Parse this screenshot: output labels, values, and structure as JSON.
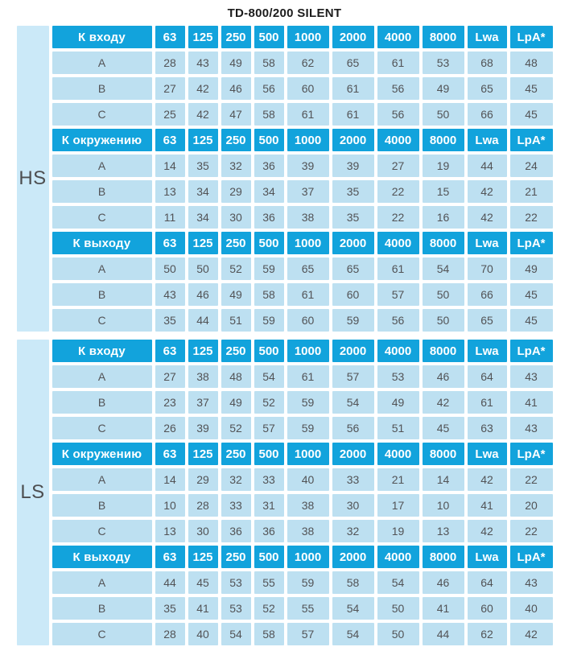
{
  "title": "TD-800/200 SILENT",
  "colors": {
    "header_blue": "#12a3dc",
    "cell_blue": "#bde0f1",
    "gutter_blue": "#cbe9f8",
    "text_dark": "#525356",
    "header_text": "#ffffff"
  },
  "chart_data": {
    "type": "table",
    "title": "TD-800/200 SILENT",
    "frequency_columns": [
      "63",
      "125",
      "250",
      "500",
      "1000",
      "2000",
      "4000",
      "8000",
      "Lwa",
      "LpA*"
    ],
    "groups": [
      {
        "label": "HS",
        "sections": [
          {
            "header": "К входу",
            "rows": [
              {
                "label": "A",
                "values": [
                  28,
                  43,
                  49,
                  58,
                  62,
                  65,
                  61,
                  53,
                  68,
                  48
                ]
              },
              {
                "label": "B",
                "values": [
                  27,
                  42,
                  46,
                  56,
                  60,
                  61,
                  56,
                  49,
                  65,
                  45
                ]
              },
              {
                "label": "C",
                "values": [
                  25,
                  42,
                  47,
                  58,
                  61,
                  61,
                  56,
                  50,
                  66,
                  45
                ]
              }
            ]
          },
          {
            "header": "К окружению",
            "rows": [
              {
                "label": "A",
                "values": [
                  14,
                  35,
                  32,
                  36,
                  39,
                  39,
                  27,
                  19,
                  44,
                  24
                ]
              },
              {
                "label": "B",
                "values": [
                  13,
                  34,
                  29,
                  34,
                  37,
                  35,
                  22,
                  15,
                  42,
                  21
                ]
              },
              {
                "label": "C",
                "values": [
                  11,
                  34,
                  30,
                  36,
                  38,
                  35,
                  22,
                  16,
                  42,
                  22
                ]
              }
            ]
          },
          {
            "header": "К выходу",
            "rows": [
              {
                "label": "A",
                "values": [
                  50,
                  50,
                  52,
                  59,
                  65,
                  65,
                  61,
                  54,
                  70,
                  49
                ]
              },
              {
                "label": "B",
                "values": [
                  43,
                  46,
                  49,
                  58,
                  61,
                  60,
                  57,
                  50,
                  66,
                  45
                ]
              },
              {
                "label": "C",
                "values": [
                  35,
                  44,
                  51,
                  59,
                  60,
                  59,
                  56,
                  50,
                  65,
                  45
                ]
              }
            ]
          }
        ]
      },
      {
        "label": "LS",
        "sections": [
          {
            "header": "К входу",
            "rows": [
              {
                "label": "A",
                "values": [
                  27,
                  38,
                  48,
                  54,
                  61,
                  57,
                  53,
                  46,
                  64,
                  43
                ]
              },
              {
                "label": "B",
                "values": [
                  23,
                  37,
                  49,
                  52,
                  59,
                  54,
                  49,
                  42,
                  61,
                  41
                ]
              },
              {
                "label": "C",
                "values": [
                  26,
                  39,
                  52,
                  57,
                  59,
                  56,
                  51,
                  45,
                  63,
                  43
                ]
              }
            ]
          },
          {
            "header": "К окружению",
            "rows": [
              {
                "label": "A",
                "values": [
                  14,
                  29,
                  32,
                  33,
                  40,
                  33,
                  21,
                  14,
                  42,
                  22
                ]
              },
              {
                "label": "B",
                "values": [
                  10,
                  28,
                  33,
                  31,
                  38,
                  30,
                  17,
                  10,
                  41,
                  20
                ]
              },
              {
                "label": "C",
                "values": [
                  13,
                  30,
                  36,
                  36,
                  38,
                  32,
                  19,
                  13,
                  42,
                  22
                ]
              }
            ]
          },
          {
            "header": "К выходу",
            "rows": [
              {
                "label": "A",
                "values": [
                  44,
                  45,
                  53,
                  55,
                  59,
                  58,
                  54,
                  46,
                  64,
                  43
                ]
              },
              {
                "label": "B",
                "values": [
                  35,
                  41,
                  53,
                  52,
                  55,
                  54,
                  50,
                  41,
                  60,
                  40
                ]
              },
              {
                "label": "C",
                "values": [
                  28,
                  40,
                  54,
                  58,
                  57,
                  54,
                  50,
                  44,
                  62,
                  42
                ]
              }
            ]
          }
        ]
      }
    ]
  }
}
